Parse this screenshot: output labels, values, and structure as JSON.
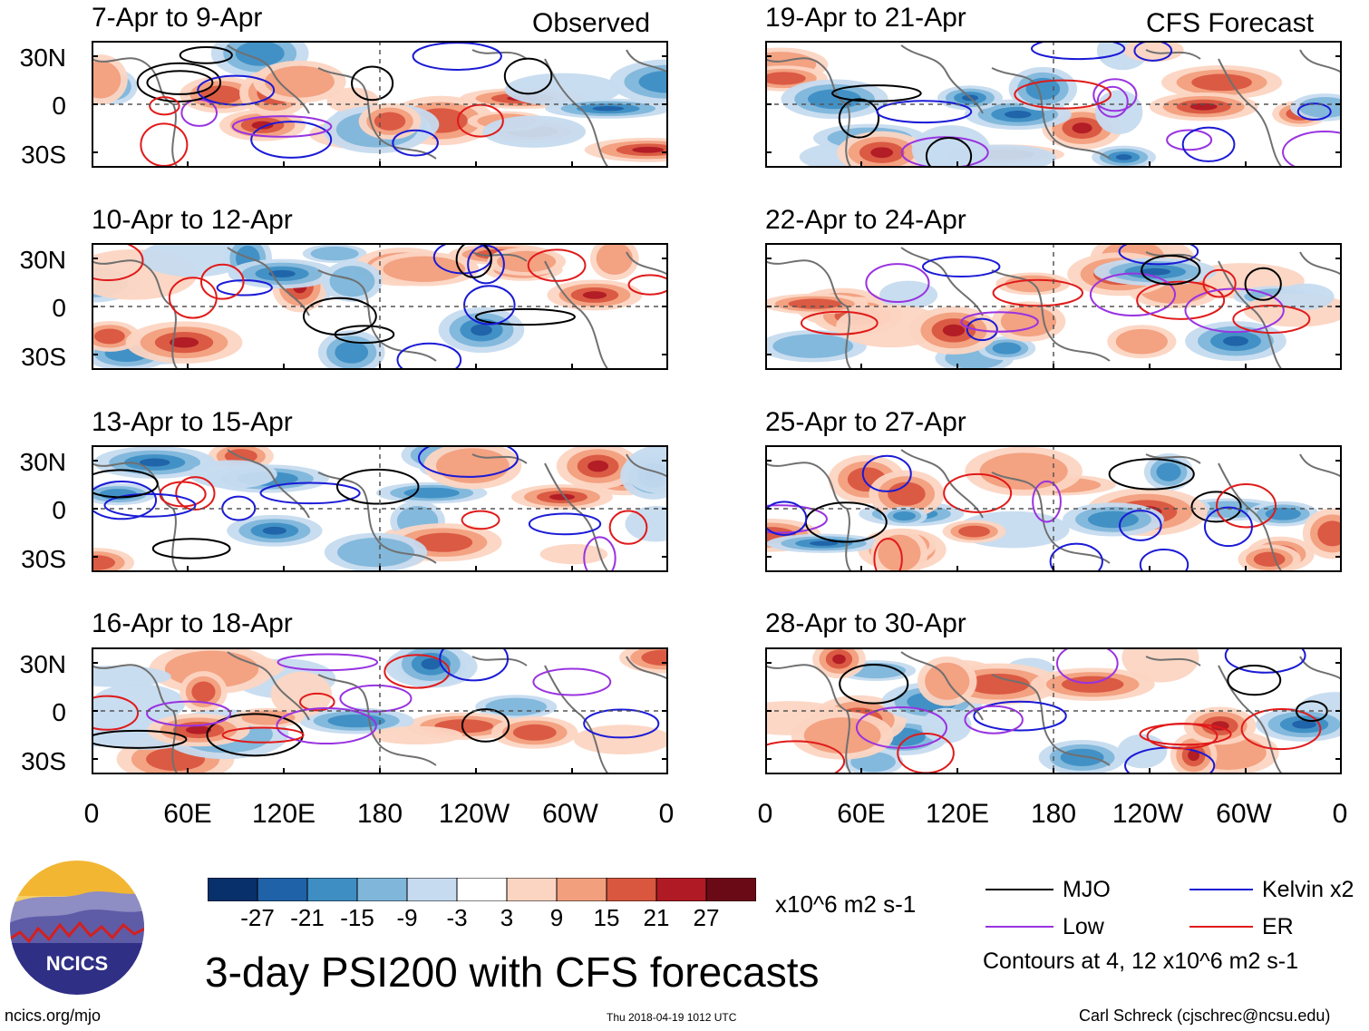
{
  "header": {
    "observed_label": "Observed",
    "forecast_label": "CFS Forecast"
  },
  "panels_left": [
    {
      "title": "7-Apr to 9-Apr"
    },
    {
      "title": "10-Apr to 12-Apr"
    },
    {
      "title": "13-Apr to 15-Apr"
    },
    {
      "title": "16-Apr to 18-Apr"
    }
  ],
  "panels_right": [
    {
      "title": "19-Apr to 21-Apr"
    },
    {
      "title": "22-Apr to 24-Apr"
    },
    {
      "title": "25-Apr to 27-Apr"
    },
    {
      "title": "28-Apr to 30-Apr"
    }
  ],
  "axes": {
    "lat_labels": [
      "30N",
      "0",
      "30S"
    ],
    "lon_labels": [
      "0",
      "60E",
      "120E",
      "180",
      "120W",
      "60W",
      "0"
    ]
  },
  "colorbar": {
    "labels": [
      "-27",
      "-21",
      "-15",
      "-9",
      "-3",
      "3",
      "9",
      "15",
      "21",
      "27"
    ],
    "colors": [
      "#08306b",
      "#1f62a8",
      "#3e8ec4",
      "#7fb6da",
      "#c6dbef",
      "#ffffff",
      "#fcd5c2",
      "#f29f7e",
      "#d9563f",
      "#b01a25",
      "#6b0a17"
    ],
    "units": "x10^6 m2 s-1"
  },
  "legend": {
    "items": [
      {
        "label": "MJO",
        "color": "#000000"
      },
      {
        "label": "Kelvin x2",
        "color": "#1a1ad6"
      },
      {
        "label": "Low",
        "color": "#9933e0"
      },
      {
        "label": "ER",
        "color": "#e01a1a"
      }
    ],
    "note": "Contours at 4, 12 x10^6 m2 s-1"
  },
  "logo": {
    "text": "NCICS"
  },
  "title": "3-day PSI200 with CFS forecasts",
  "footer": {
    "left": "ncics.org/mjo",
    "center": "Thu 2018-04-19 1012 UTC",
    "right": "Carl Schreck (cjschrec@ncsu.edu)"
  }
}
